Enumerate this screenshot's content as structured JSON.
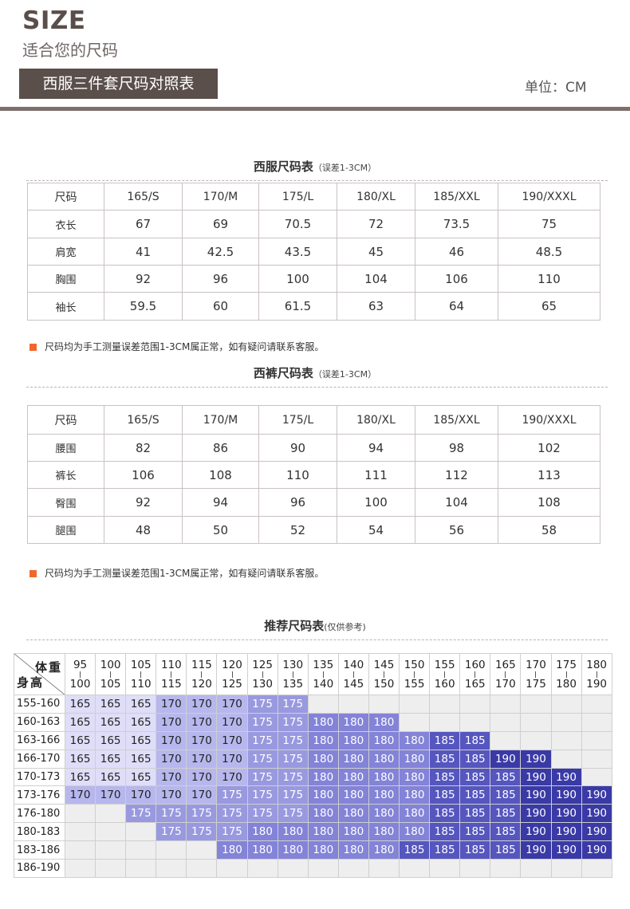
{
  "header": {
    "title": "SIZE",
    "subtitle": "适合您的尺码",
    "banner": "西服三件套尺码对照表",
    "unit": "单位：CM"
  },
  "suit": {
    "title": "西服尺码表",
    "note": "（误差1-3CM）",
    "columns": [
      "尺码",
      "165/S",
      "170/M",
      "175/L",
      "180/XL",
      "185/XXL",
      "190/XXXL"
    ],
    "rows": [
      {
        "label": "衣长",
        "values": [
          "67",
          "69",
          "70.5",
          "72",
          "73.5",
          "75"
        ]
      },
      {
        "label": "肩宽",
        "values": [
          "41",
          "42.5",
          "43.5",
          "45",
          "46",
          "48.5"
        ]
      },
      {
        "label": "胸围",
        "values": [
          "92",
          "96",
          "100",
          "104",
          "106",
          "110"
        ]
      },
      {
        "label": "袖长",
        "values": [
          "59.5",
          "60",
          "61.5",
          "63",
          "64",
          "65"
        ]
      }
    ],
    "notice": "尺码均为手工测量误差范围1-3CM属正常，如有疑问请联系客服。"
  },
  "pants": {
    "title": "西裤尺码表",
    "note": "（误差1-3CM）",
    "columns": [
      "尺码",
      "165/S",
      "170/M",
      "175/L",
      "180/XL",
      "185/XXL",
      "190/XXXL"
    ],
    "rows": [
      {
        "label": "腰围",
        "values": [
          "82",
          "86",
          "90",
          "94",
          "98",
          "102"
        ]
      },
      {
        "label": "裤长",
        "values": [
          "106",
          "108",
          "110",
          "111",
          "112",
          "113"
        ]
      },
      {
        "label": "臀围",
        "values": [
          "92",
          "94",
          "96",
          "100",
          "104",
          "108"
        ]
      },
      {
        "label": "腿围",
        "values": [
          "48",
          "50",
          "52",
          "54",
          "56",
          "58"
        ]
      }
    ],
    "notice": "尺码均为手工测量误差范围1-3CM属正常，如有疑问请联系客服。"
  },
  "recommend": {
    "title": "推荐尺码表",
    "note": "(仅供参考)",
    "weight_label": "体重",
    "height_label": "身高",
    "weights": [
      [
        "95",
        "100"
      ],
      [
        "100",
        "105"
      ],
      [
        "105",
        "110"
      ],
      [
        "110",
        "115"
      ],
      [
        "115",
        "120"
      ],
      [
        "120",
        "125"
      ],
      [
        "125",
        "130"
      ],
      [
        "130",
        "135"
      ],
      [
        "135",
        "140"
      ],
      [
        "140",
        "145"
      ],
      [
        "145",
        "150"
      ],
      [
        "150",
        "155"
      ],
      [
        "155",
        "160"
      ],
      [
        "160",
        "165"
      ],
      [
        "165",
        "170"
      ],
      [
        "170",
        "175"
      ],
      [
        "175",
        "180"
      ],
      [
        "180",
        "190"
      ]
    ],
    "rows": [
      {
        "height": "155-160",
        "cells": [
          "165",
          "165",
          "165",
          "170",
          "170",
          "170",
          "175",
          "175",
          "",
          "",
          "",
          "",
          "",
          "",
          "",
          "",
          "",
          ""
        ]
      },
      {
        "height": "160-163",
        "cells": [
          "165",
          "165",
          "165",
          "170",
          "170",
          "170",
          "175",
          "175",
          "180",
          "180",
          "180",
          "",
          "",
          "",
          "",
          "",
          "",
          ""
        ]
      },
      {
        "height": "163-166",
        "cells": [
          "165",
          "165",
          "165",
          "170",
          "170",
          "170",
          "175",
          "175",
          "180",
          "180",
          "180",
          "180",
          "185",
          "185",
          "",
          "",
          "",
          ""
        ]
      },
      {
        "height": "166-170",
        "cells": [
          "165",
          "165",
          "165",
          "170",
          "170",
          "170",
          "175",
          "175",
          "180",
          "180",
          "180",
          "180",
          "185",
          "185",
          "190",
          "190",
          "",
          ""
        ]
      },
      {
        "height": "170-173",
        "cells": [
          "165",
          "165",
          "165",
          "170",
          "170",
          "170",
          "175",
          "175",
          "180",
          "180",
          "180",
          "180",
          "185",
          "185",
          "185",
          "190",
          "190",
          ""
        ]
      },
      {
        "height": "173-176",
        "cells": [
          "170",
          "170",
          "170",
          "170",
          "170",
          "175",
          "175",
          "175",
          "180",
          "180",
          "180",
          "180",
          "185",
          "185",
          "185",
          "190",
          "190",
          "190"
        ]
      },
      {
        "height": "176-180",
        "cells": [
          "",
          "",
          "175",
          "175",
          "175",
          "175",
          "175",
          "175",
          "180",
          "180",
          "180",
          "180",
          "185",
          "185",
          "185",
          "190",
          "190",
          "190"
        ]
      },
      {
        "height": "180-183",
        "cells": [
          "",
          "",
          "",
          "175",
          "175",
          "175",
          "180",
          "180",
          "180",
          "180",
          "180",
          "180",
          "185",
          "185",
          "185",
          "190",
          "190",
          "190"
        ]
      },
      {
        "height": "183-186",
        "cells": [
          "",
          "",
          "",
          "",
          "",
          "180",
          "180",
          "180",
          "180",
          "180",
          "180",
          "185",
          "185",
          "185",
          "185",
          "190",
          "190",
          "190"
        ]
      },
      {
        "height": "186-190",
        "cells": [
          "",
          "",
          "",
          "",
          "",
          "",
          "",
          "",
          "",
          "",
          "",
          "",
          "",
          "",
          "",
          "",
          "",
          ""
        ]
      }
    ]
  }
}
